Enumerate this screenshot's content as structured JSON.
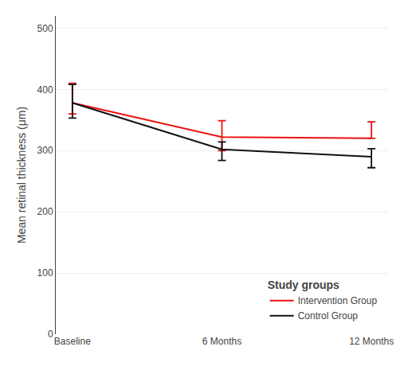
{
  "chart_data": {
    "type": "line",
    "categories": [
      "Baseline",
      "6 Months",
      "12 Months"
    ],
    "series": [
      {
        "name": "Intervention Group",
        "color": "#ee1111",
        "values": [
          378,
          322,
          320
        ],
        "error_upper": [
          32,
          27,
          27
        ],
        "error_lower": [
          18,
          22,
          0
        ]
      },
      {
        "name": "Control Group",
        "color": "#111111",
        "values": [
          378,
          302,
          290
        ],
        "error_upper": [
          30,
          12,
          13
        ],
        "error_lower": [
          25,
          18,
          18
        ]
      }
    ],
    "ylabel": "Mean retinal thickness (μm)",
    "ylim": [
      0,
      520
    ],
    "yticks": [
      0,
      100,
      200,
      300,
      400,
      500
    ],
    "grid": true,
    "legend": "lower right",
    "legend_title": "Study groups"
  }
}
